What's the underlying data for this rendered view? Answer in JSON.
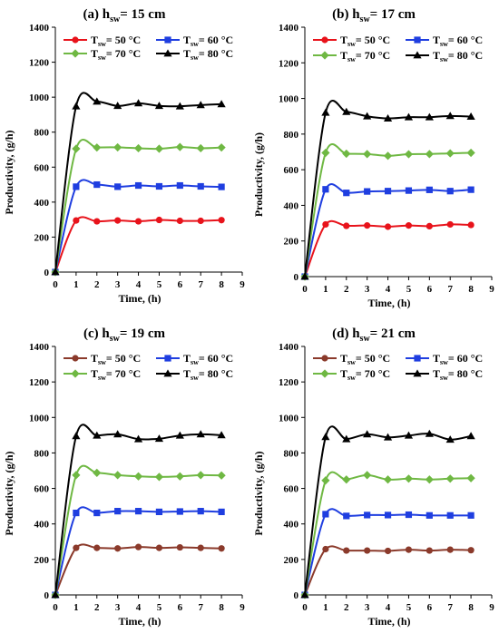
{
  "chart_data": [
    {
      "type": "line",
      "title_prefix": "(a) h",
      "title_sub": "sw",
      "title_suffix": "= 15 cm",
      "xlabel": "Time, (h)",
      "ylabel": "Productivity, (g/h)",
      "xlim": [
        0,
        9
      ],
      "ylim": [
        0,
        1400
      ],
      "xticks": [
        "0",
        "1",
        "2",
        "3",
        "4",
        "5",
        "6",
        "7",
        "8",
        "9"
      ],
      "yticks": [
        "0",
        "200",
        "400",
        "600",
        "800",
        "1000",
        "1200",
        "1400"
      ],
      "legend_position": "top",
      "x": [
        0,
        1,
        2,
        3,
        4,
        5,
        6,
        7,
        8
      ],
      "series": [
        {
          "name": "T_sw= 50 °C",
          "color": "#e8131b",
          "marker": "circle",
          "values": [
            0,
            295,
            290,
            295,
            290,
            298,
            293,
            293,
            297
          ]
        },
        {
          "name": "T_sw= 60 °C",
          "color": "#1f3ee0",
          "marker": "square",
          "values": [
            0,
            488,
            500,
            488,
            495,
            490,
            495,
            490,
            487
          ]
        },
        {
          "name": "T_sw= 70 °C",
          "color": "#6fb843",
          "marker": "diamond",
          "values": [
            0,
            705,
            712,
            713,
            708,
            705,
            715,
            708,
            712
          ]
        },
        {
          "name": "T_sw= 80 °C",
          "color": "#000000",
          "marker": "triangle",
          "values": [
            0,
            948,
            975,
            950,
            965,
            950,
            948,
            955,
            960
          ]
        }
      ]
    },
    {
      "type": "line",
      "title_prefix": "(b) h",
      "title_sub": "sw",
      "title_suffix": "= 17 cm",
      "xlabel": "Time, (h)",
      "ylabel": "Productivity, (g/h)",
      "xlim": [
        0,
        9
      ],
      "ylim": [
        0,
        1400
      ],
      "xticks": [
        "0",
        "1",
        "2",
        "3",
        "4",
        "5",
        "6",
        "7",
        "8",
        "9"
      ],
      "yticks": [
        "0",
        "200",
        "400",
        "600",
        "800",
        "1000",
        "1200",
        "1400"
      ],
      "legend_position": "top",
      "x": [
        0,
        1,
        2,
        3,
        4,
        5,
        6,
        7,
        8
      ],
      "series": [
        {
          "name": "T_sw= 50 °C",
          "color": "#e8131b",
          "marker": "circle",
          "values": [
            0,
            293,
            285,
            287,
            280,
            287,
            283,
            293,
            290
          ]
        },
        {
          "name": "T_sw= 60 °C",
          "color": "#1f3ee0",
          "marker": "square",
          "values": [
            0,
            490,
            470,
            478,
            480,
            483,
            487,
            480,
            488
          ]
        },
        {
          "name": "T_sw= 70 °C",
          "color": "#6fb843",
          "marker": "diamond",
          "values": [
            0,
            695,
            690,
            688,
            678,
            687,
            688,
            692,
            695
          ]
        },
        {
          "name": "T_sw= 80 °C",
          "color": "#000000",
          "marker": "triangle",
          "values": [
            0,
            920,
            925,
            900,
            888,
            895,
            895,
            902,
            898
          ]
        }
      ]
    },
    {
      "type": "line",
      "title_prefix": "(c) h",
      "title_sub": "sw",
      "title_suffix": "= 19 cm",
      "xlabel": "Time, (h)",
      "ylabel": "Productivity, (g/h)",
      "xlim": [
        0,
        9
      ],
      "ylim": [
        0,
        1400
      ],
      "xticks": [
        "0",
        "1",
        "2",
        "3",
        "4",
        "5",
        "6",
        "7",
        "8",
        "9"
      ],
      "yticks": [
        "0",
        "200",
        "400",
        "600",
        "800",
        "1000",
        "1200",
        "1400"
      ],
      "legend_position": "top",
      "x": [
        0,
        1,
        2,
        3,
        4,
        5,
        6,
        7,
        8
      ],
      "series": [
        {
          "name": "T_sw= 50 °C",
          "color": "#8b3a2b",
          "marker": "circle",
          "values": [
            0,
            265,
            265,
            262,
            270,
            265,
            268,
            265,
            262
          ]
        },
        {
          "name": "T_sw= 60 °C",
          "color": "#1f3ee0",
          "marker": "square",
          "values": [
            0,
            462,
            462,
            472,
            472,
            468,
            470,
            472,
            468
          ]
        },
        {
          "name": "T_sw= 70 °C",
          "color": "#6fb843",
          "marker": "diamond",
          "values": [
            0,
            675,
            688,
            675,
            668,
            665,
            668,
            675,
            673
          ]
        },
        {
          "name": "T_sw= 80 °C",
          "color": "#000000",
          "marker": "triangle",
          "values": [
            0,
            895,
            898,
            905,
            878,
            880,
            898,
            905,
            900
          ]
        }
      ]
    },
    {
      "type": "line",
      "title_prefix": "(d) h",
      "title_sub": "sw",
      "title_suffix": "= 21 cm",
      "xlabel": "Time, (h)",
      "ylabel": "Productivity, (g/h)",
      "xlim": [
        0,
        9
      ],
      "ylim": [
        0,
        1400
      ],
      "xticks": [
        "0",
        "1",
        "2",
        "3",
        "4",
        "5",
        "6",
        "7",
        "8",
        "9"
      ],
      "yticks": [
        "0",
        "200",
        "400",
        "600",
        "800",
        "1000",
        "1200",
        "1400"
      ],
      "legend_position": "top",
      "x": [
        0,
        1,
        2,
        3,
        4,
        5,
        6,
        7,
        8
      ],
      "series": [
        {
          "name": "T_sw= 50 °C",
          "color": "#8b3a2b",
          "marker": "circle",
          "values": [
            0,
            258,
            250,
            250,
            248,
            255,
            250,
            255,
            252
          ]
        },
        {
          "name": "T_sw= 60 °C",
          "color": "#1f3ee0",
          "marker": "square",
          "values": [
            0,
            455,
            445,
            450,
            450,
            452,
            448,
            448,
            448
          ]
        },
        {
          "name": "T_sw= 70 °C",
          "color": "#6fb843",
          "marker": "diamond",
          "values": [
            0,
            645,
            650,
            675,
            650,
            655,
            650,
            655,
            658
          ]
        },
        {
          "name": "T_sw= 80 °C",
          "color": "#000000",
          "marker": "triangle",
          "values": [
            0,
            890,
            878,
            905,
            888,
            898,
            908,
            875,
            895
          ]
        }
      ]
    }
  ]
}
